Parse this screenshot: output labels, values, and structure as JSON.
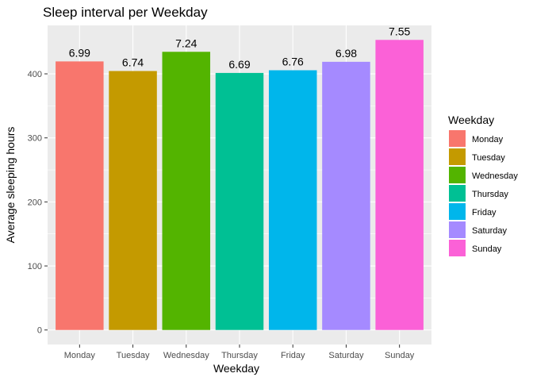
{
  "chart_data": {
    "type": "bar",
    "title": "Sleep interval per Weekday",
    "xlabel": "Weekday",
    "ylabel": "Average sleeping hours",
    "categories": [
      "Monday",
      "Tuesday",
      "Wednesday",
      "Thursday",
      "Friday",
      "Saturday",
      "Sunday"
    ],
    "values": [
      419.4,
      404.4,
      434.4,
      401.4,
      405.6,
      418.8,
      453.0
    ],
    "data_labels": [
      "6.99",
      "6.74",
      "7.24",
      "6.69",
      "6.76",
      "6.98",
      "7.55"
    ],
    "colors": [
      "#F8766D",
      "#C49A00",
      "#53B400",
      "#00C094",
      "#00B6EB",
      "#A58AFF",
      "#FB61D7"
    ],
    "yticks": [
      0,
      100,
      200,
      300,
      400
    ],
    "ylim": [
      -22.65,
      475.65
    ],
    "grid": true,
    "panel_background": "#EBEBEB",
    "legend": {
      "title": "Weekday",
      "position": "right",
      "items": [
        "Monday",
        "Tuesday",
        "Wednesday",
        "Thursday",
        "Friday",
        "Saturday",
        "Sunday"
      ]
    }
  }
}
